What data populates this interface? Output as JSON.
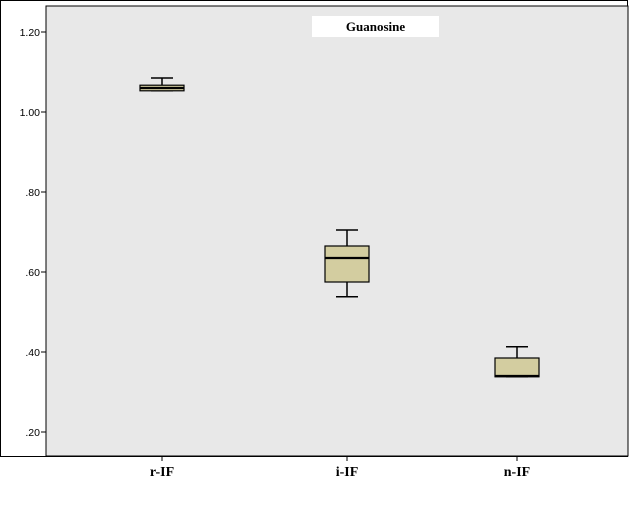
{
  "chart_data": {
    "type": "boxplot",
    "title": "Guanosine",
    "xlabel": "",
    "ylabel": "",
    "ylim": [
      0.15,
      1.25
    ],
    "y_ticks": [
      0.2,
      0.4,
      0.6,
      0.8,
      1.0,
      1.2
    ],
    "y_tick_labels": [
      ".20",
      ".40",
      ".60",
      ".80",
      "1.00",
      "1.20"
    ],
    "categories": [
      "r-IF",
      "i-IF",
      "n-IF"
    ],
    "boxes": [
      {
        "category": "r-IF",
        "min": 1.053,
        "q1": 1.053,
        "median": 1.06,
        "q3": 1.067,
        "max": 1.085
      },
      {
        "category": "i-IF",
        "min": 0.538,
        "q1": 0.575,
        "median": 0.635,
        "q3": 0.665,
        "max": 0.705
      },
      {
        "category": "n-IF",
        "min": 0.338,
        "q1": 0.338,
        "median": 0.34,
        "q3": 0.385,
        "max": 0.413
      }
    ],
    "plot_background": "#e8e8e8",
    "box_fill": "#d3cda0",
    "grid": false,
    "legend": "none"
  }
}
